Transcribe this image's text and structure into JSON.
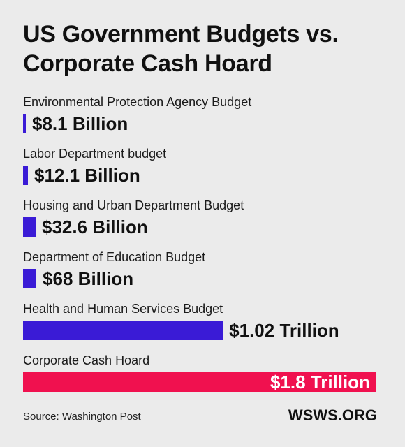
{
  "chart_data": {
    "type": "bar",
    "orientation": "horizontal",
    "title": "US Government Budgets vs. Corporate Cash Hoard",
    "categories": [
      "Environmental Protection Agency Budget",
      "Labor Department budget",
      "Housing and Urban Department Budget",
      "Department of Education Budget",
      "Health and Human Services Budget",
      "Corporate Cash Hoard"
    ],
    "values": [
      8.1,
      12.1,
      32.6,
      68,
      1020,
      1800
    ],
    "unit": "billion USD",
    "value_labels": [
      "$8.1 Billion",
      "$12.1 Billion",
      "$32.6 Billion",
      "$68 Billion",
      "$1.02 Trillion",
      "$1.8 Trillion"
    ],
    "colors": [
      "#3a1bd6",
      "#3a1bd6",
      "#3a1bd6",
      "#3a1bd6",
      "#3a1bd6",
      "#f0114f"
    ]
  },
  "footer": {
    "source": "Source: Washington Post",
    "brand": "WSWS.ORG"
  }
}
